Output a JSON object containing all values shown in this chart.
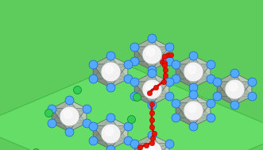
{
  "fig_width": 3.31,
  "fig_height": 1.89,
  "dpi": 100,
  "bg_color": "#5dcc5d",
  "W_color": "#f2f2f2",
  "O_blue": "#55aaff",
  "O_blue_edge": "#1166cc",
  "O_green": "#33cc55",
  "O_green_edge": "#008822",
  "H_red": "#ee1100",
  "path_red": "#dd0000",
  "path_green": "#005500",
  "octa_edge": "#555555",
  "plane_fill": "#66dd66",
  "plane_edge": "#44bb44"
}
